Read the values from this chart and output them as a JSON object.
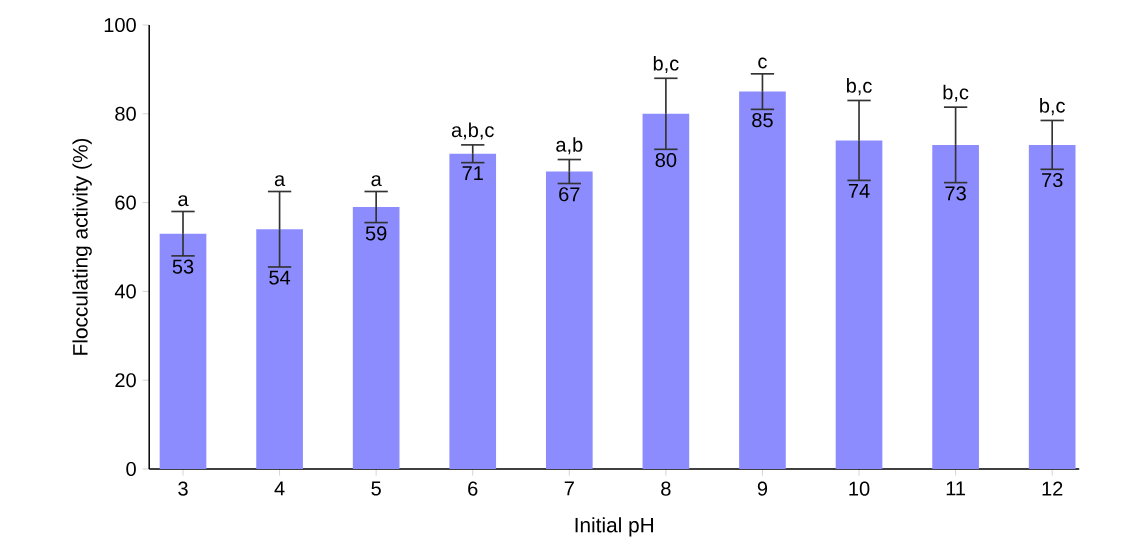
{
  "chart_data": {
    "type": "bar",
    "xlabel": "Initial pH",
    "ylabel": "Flocculating activity (%)",
    "categories": [
      "3",
      "4",
      "5",
      "6",
      "7",
      "8",
      "9",
      "10",
      "11",
      "12"
    ],
    "values": [
      53,
      54,
      59,
      71,
      67,
      80,
      85,
      74,
      73,
      73
    ],
    "errors": [
      5,
      8.5,
      3.5,
      2,
      2.7,
      8,
      4,
      9,
      8.5,
      5.5
    ],
    "color": "#8c8cff",
    "data_labels": true,
    "grid": false,
    "ylim": [
      0,
      100
    ],
    "yticks": [
      0,
      20,
      40,
      60,
      80,
      100
    ],
    "annotations": [
      {
        "text": "a",
        "x": "3",
        "y": 58
      },
      {
        "text": "a",
        "x": "4",
        "y": 62.5
      },
      {
        "text": "a",
        "x": "5",
        "y": 62.5
      },
      {
        "text": "a,b,c",
        "x": "6",
        "y": 73
      },
      {
        "text": "a,b",
        "x": "7",
        "y": 69.7
      },
      {
        "text": "b,c",
        "x": "8",
        "y": 88
      },
      {
        "text": "c",
        "x": "9",
        "y": 89
      },
      {
        "text": "b,c",
        "x": "10",
        "y": 83
      },
      {
        "text": "b,c",
        "x": "11",
        "y": 81.5
      },
      {
        "text": "b,c",
        "x": "12",
        "y": 78.5
      }
    ]
  }
}
